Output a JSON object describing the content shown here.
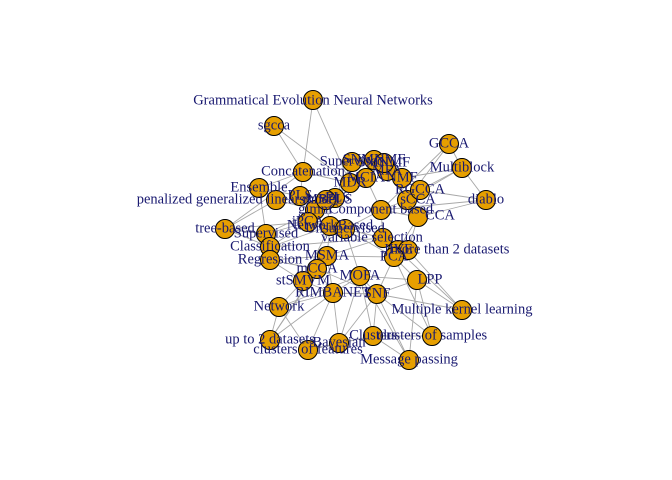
{
  "colors": {
    "node_fill": "#e69f00",
    "node_stroke": "#000000",
    "edge": "#a8a8a8",
    "label": "#191970",
    "background": "#ffffff"
  },
  "labels": {
    "gene": "Grammatical Evolution Neural Networks",
    "sgcca": "sgcca",
    "gcca": "GCCA",
    "multiblock": "Multiblock",
    "concat": "Concatenation",
    "ensemble": "Ensemble",
    "pglm": "penalized generalized linear model",
    "diablo": "diablo",
    "scca": "sCCA",
    "jive": "JIVE",
    "mfa": "MFA",
    "rgcca": "RGCCA",
    "nmf": "NMF",
    "snmnmf": "SNMNMF",
    "cca": "CCA",
    "pls": "PLS",
    "spls": "sPLS",
    "tree": "tree-based",
    "supervised": "Supervised",
    "classif": "Classification",
    "varsel": "variable selection",
    "regression": "Regression",
    "msma": "MSMA",
    "more2": "more than 2 datasets",
    "pca": "PCA",
    "mcca": "mCCA",
    "lpp": "LPP",
    "stmks": "stSMVM",
    "rimbanet": "RIMBANET",
    "snf": "SNF",
    "network": "Network",
    "mkl": "Multiple kernel learning",
    "upto2": "up to 2 datasets",
    "bayesian": "Bayesian",
    "clusters": "Clusters",
    "csamples": "clusters of samples",
    "cfeatures": "clusters of features",
    "msgpass": "Message passing",
    "gimm": "gimm",
    "compbased": "Component based",
    "smnmf": "SMNMF",
    "mdr": "MDR",
    "mcia": "MCIA",
    "sup2": "Supervised",
    "network2": "NetworkBased",
    "unsup": "Unsupervised",
    "smpls": "sMBPLS",
    "ipca": "iPCA",
    "mofa": "MOFA"
  }
}
